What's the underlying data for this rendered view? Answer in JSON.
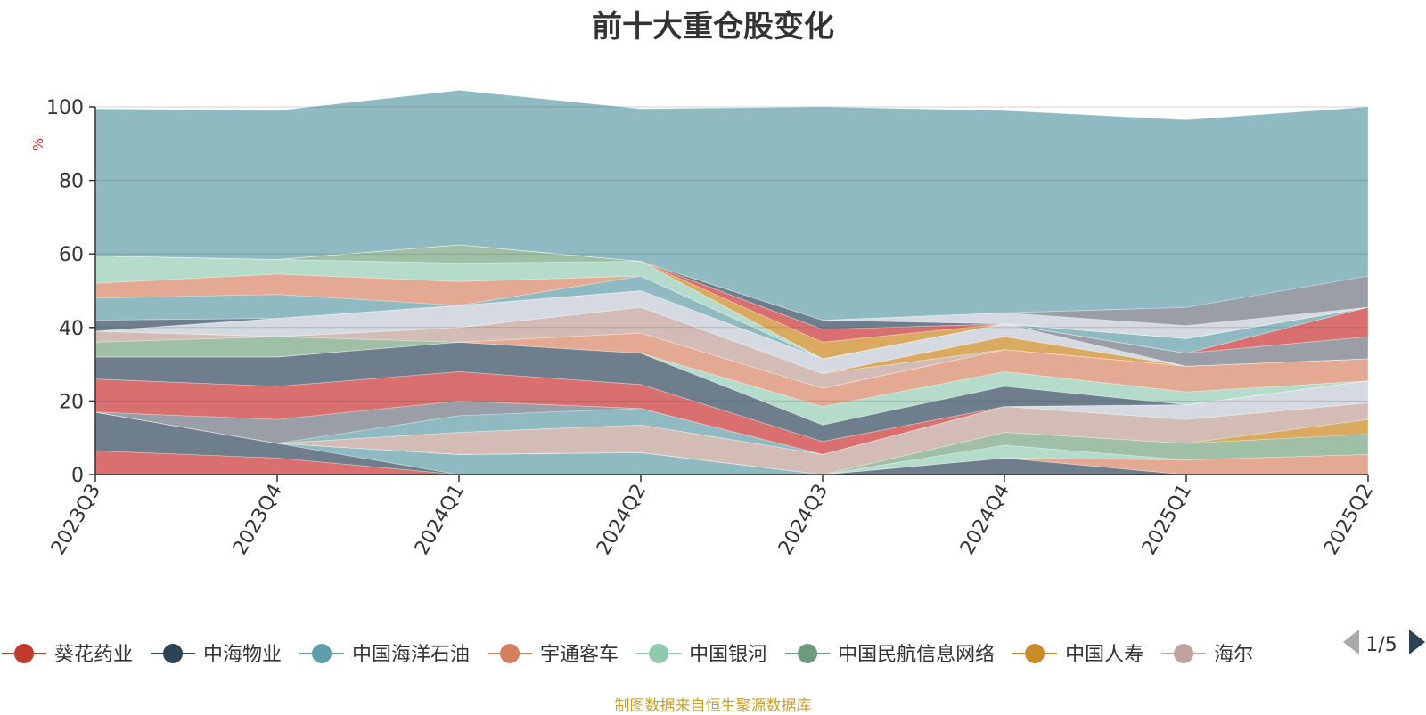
{
  "title": "前十大重仓股变化",
  "source_note": "制图数据来自恒生聚源数据库",
  "legend_page": "1/5",
  "chart_data": {
    "type": "area",
    "stacked": true,
    "title": "前十大重仓股变化",
    "ylabel": "%",
    "ylim": [
      0,
      100
    ],
    "yticks": [
      0,
      20,
      40,
      60,
      80,
      100
    ],
    "grid": true,
    "legend_position": "bottom",
    "categories": [
      "2023Q3",
      "2023Q4",
      "2024Q1",
      "2024Q2",
      "2024Q3",
      "2024Q4",
      "2025Q1",
      "2025Q2"
    ],
    "legend_visible": [
      "葵花药业",
      "中海物业",
      "中国海洋石油",
      "宇通客车",
      "中国银河",
      "中国民航信息网络",
      "中国人寿",
      "海尔"
    ],
    "series": [
      {
        "name": "葵花药业",
        "color": "#d9706f",
        "values": [
          6.5,
          4.5,
          0,
          0,
          0,
          0,
          0,
          0
        ]
      },
      {
        "name": "中海物业",
        "color": "#6e7e8c",
        "values": [
          10.5,
          4,
          0,
          0,
          0,
          4.5,
          0,
          0
        ]
      },
      {
        "name": "中国海洋石油",
        "color": "#8fbac2",
        "values": [
          0,
          0,
          5.5,
          6,
          0,
          0,
          0,
          0
        ]
      },
      {
        "name": "宇通客车",
        "color": "#e4a992",
        "values": [
          0,
          0,
          0,
          0,
          0,
          0,
          4,
          5.5
        ]
      },
      {
        "name": "中国银河",
        "color": "#b5dccb",
        "values": [
          0,
          0,
          0,
          0,
          0,
          3.5,
          0,
          0
        ]
      },
      {
        "name": "中国民航信息网络",
        "color": "#9fbfa6",
        "values": [
          0,
          0,
          0,
          0,
          0,
          3.5,
          4.5,
          5.5
        ]
      },
      {
        "name": "中国人寿",
        "color": "#d9aa5f",
        "values": [
          0,
          0,
          0,
          0,
          0,
          0,
          0,
          4
        ]
      },
      {
        "name": "海尔",
        "color": "#d2bcb5",
        "values": [
          0,
          0,
          6,
          7.5,
          5.5,
          7,
          6.5,
          4.5
        ]
      },
      {
        "color": "#d5dae2",
        "values": [
          0,
          0,
          0,
          0,
          0,
          0,
          4,
          6
        ]
      },
      {
        "color": "#8fbac2",
        "values": [
          0,
          0,
          4.5,
          4.5,
          0,
          0,
          0,
          0
        ]
      },
      {
        "color": "#9a9ea6",
        "values": [
          0,
          6.5,
          4,
          0,
          0,
          0,
          0,
          0
        ]
      },
      {
        "color": "#d9706f",
        "values": [
          9,
          9,
          8,
          6.5,
          3.5,
          0,
          0,
          0
        ]
      },
      {
        "color": "#6e7e8c",
        "values": [
          6,
          8,
          8,
          8.5,
          4.5,
          5.5,
          0,
          0
        ]
      },
      {
        "color": "#b5dccb",
        "values": [
          0,
          0,
          0,
          0,
          5,
          4,
          3.5,
          0
        ]
      },
      {
        "color": "#e4a992",
        "values": [
          0,
          0,
          0,
          5.5,
          5,
          6,
          7,
          6
        ]
      },
      {
        "color": "#9fbfa6",
        "values": [
          4,
          5.5,
          0,
          0,
          0,
          0,
          0,
          0
        ]
      },
      {
        "color": "#d2bcb5",
        "values": [
          3,
          0,
          4,
          7,
          4,
          0,
          0,
          0
        ]
      },
      {
        "color": "#d9aa5f",
        "values": [
          0,
          0,
          0,
          0,
          0,
          3.5,
          0,
          0
        ]
      },
      {
        "color": "#d5dae2",
        "values": [
          0,
          5,
          6,
          4.5,
          4,
          3.5,
          0,
          0
        ]
      },
      {
        "color": "#9a9ea6",
        "values": [
          0,
          0,
          0,
          0,
          0,
          0,
          3.5,
          6
        ]
      },
      {
        "color": "#d9706f",
        "values": [
          0,
          0,
          0,
          0,
          0,
          0,
          0,
          8
        ]
      },
      {
        "color": "#6e7e8c",
        "values": [
          3,
          0,
          0,
          0,
          0,
          0,
          0,
          0
        ]
      },
      {
        "color": "#8fbac2",
        "values": [
          6,
          6.5,
          0,
          4,
          0,
          0,
          4,
          0
        ]
      },
      {
        "color": "#e4a992",
        "values": [
          4,
          5.5,
          6.5,
          0,
          0,
          0,
          0,
          0
        ]
      },
      {
        "color": "#b5dccb",
        "values": [
          7.5,
          4,
          5,
          4,
          0,
          0,
          0,
          0
        ]
      },
      {
        "color": "#9fbfa6",
        "values": [
          0,
          0,
          5,
          0,
          0,
          0,
          0,
          0
        ]
      },
      {
        "color": "#d9aa5f",
        "values": [
          0,
          0,
          0,
          0,
          4.5,
          0,
          0,
          0
        ]
      },
      {
        "color": "#d9706f",
        "values": [
          0,
          0,
          0,
          0,
          3.5,
          0,
          0,
          0
        ]
      },
      {
        "color": "#6e7e8c",
        "values": [
          0,
          0,
          0,
          0,
          2.5,
          0,
          0,
          0
        ]
      },
      {
        "color": "#d5dae2",
        "values": [
          0,
          0,
          0,
          0,
          0,
          3,
          3.5,
          0
        ]
      },
      {
        "color": "#9a9ea6",
        "values": [
          0,
          0,
          0,
          0,
          0,
          0,
          5,
          8.5
        ]
      },
      {
        "color": "#8fbac2",
        "values": [
          40,
          40.5,
          42,
          41.5,
          58,
          55,
          51,
          46
        ]
      }
    ]
  },
  "legend": [
    {
      "name": "葵花药业",
      "color": "#c0392b",
      "icon": "circle-line-icon"
    },
    {
      "name": "中海物业",
      "color": "#2c4356",
      "icon": "circle-line-icon"
    },
    {
      "name": "中国海洋石油",
      "color": "#5e9fac",
      "icon": "circle-line-icon"
    },
    {
      "name": "宇通客车",
      "color": "#d57f5e",
      "icon": "circle-line-icon"
    },
    {
      "name": "中国银河",
      "color": "#8fc9ae",
      "icon": "circle-line-icon"
    },
    {
      "name": "中国民航信息网络",
      "color": "#6e9a7e",
      "icon": "circle-line-icon"
    },
    {
      "name": "中国人寿",
      "color": "#c98a28",
      "icon": "circle-line-icon"
    },
    {
      "name": "海尔",
      "color": "#c0a49b",
      "icon": "circle-line-icon"
    }
  ]
}
